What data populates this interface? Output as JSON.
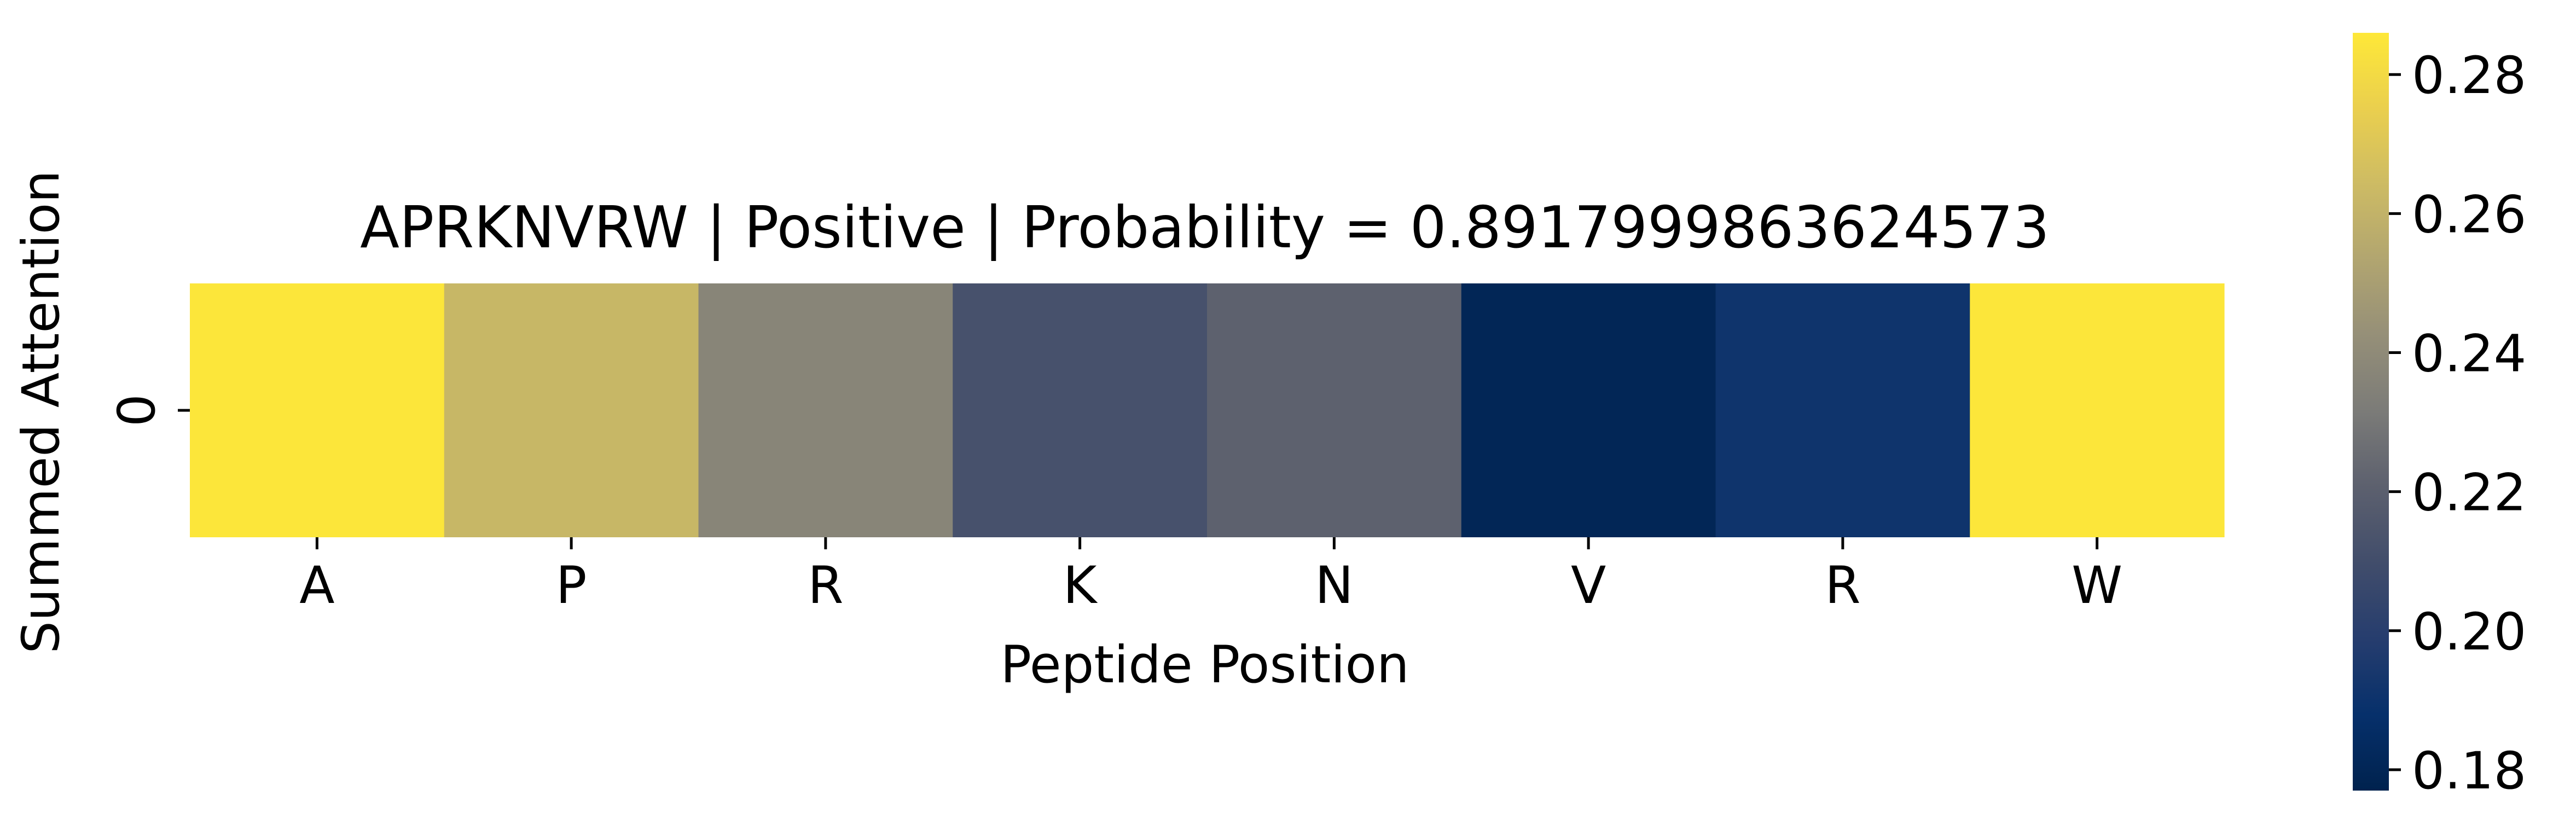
{
  "chart_data": {
    "type": "heatmap",
    "title": "APRKNVRW | Positive | Probability = 0.8917999863624573",
    "xlabel": "Peptide Position",
    "ylabel": "Summed Attention",
    "x_categories": [
      "A",
      "P",
      "R",
      "K",
      "N",
      "V",
      "R",
      "W"
    ],
    "y_categories": [
      "0"
    ],
    "values": [
      [
        0.285,
        0.262,
        0.237,
        0.212,
        0.221,
        0.18,
        0.191,
        0.285
      ]
    ],
    "colormap": "cividis",
    "colorbar": {
      "range": [
        0.177,
        0.286
      ],
      "ticks": [
        "0.18",
        "0.20",
        "0.22",
        "0.24",
        "0.26",
        "0.28"
      ],
      "tick_values": [
        0.18,
        0.2,
        0.22,
        0.24,
        0.26,
        0.28
      ]
    },
    "grid": false
  }
}
